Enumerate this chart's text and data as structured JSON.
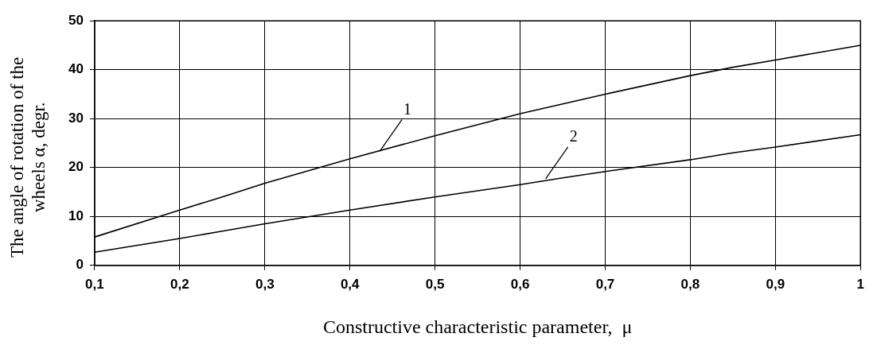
{
  "chart_data": {
    "type": "line",
    "xlabel": "Constructive characteristic parameter,  μ",
    "ylabel": "The angle of rotation of the wheels α, degr.",
    "xlim": [
      0.1,
      1
    ],
    "xticks": [
      {
        "value": 0.1,
        "label": "0,1"
      },
      {
        "value": 0.2,
        "label": "0,2"
      },
      {
        "value": 0.3,
        "label": "0,3"
      },
      {
        "value": 0.4,
        "label": "0,4"
      },
      {
        "value": 0.5,
        "label": "0,5"
      },
      {
        "value": 0.6,
        "label": "0,6"
      },
      {
        "value": 0.7,
        "label": "0,7"
      },
      {
        "value": 0.8,
        "label": "0,8"
      },
      {
        "value": 0.9,
        "label": "0,9"
      },
      1
    ],
    "ylim": [
      0,
      50
    ],
    "yticks": [
      0,
      10,
      20,
      30,
      40,
      50
    ],
    "grid": true,
    "legend": false,
    "marker": "none",
    "line_style": "solid",
    "x": [
      0.1,
      0.2,
      0.25,
      0.3,
      0.4,
      0.5,
      0.6,
      0.65,
      0.7,
      0.8,
      0.85,
      0.9,
      1.0
    ],
    "series": [
      {
        "color": "#000000",
        "values": [
          5.8,
          11.3,
          14,
          16.8,
          21.8,
          26.5,
          31,
          33,
          35,
          38.8,
          40.5,
          42,
          45
        ]
      },
      {
        "color": "#000000",
        "values": [
          2.7,
          5.5,
          7,
          8.5,
          11.3,
          14,
          16.5,
          17.9,
          19.2,
          21.6,
          23,
          24.2,
          26.7
        ]
      }
    ],
    "annotations": [
      {
        "text": "1",
        "x": 0.435,
        "y": 23.3
      },
      {
        "text": "2",
        "x": 0.63,
        "y": 17.7
      }
    ]
  }
}
